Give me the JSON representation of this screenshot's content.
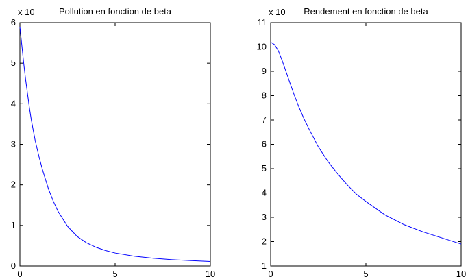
{
  "chart_data": [
    {
      "type": "line",
      "title": "Pollution en fonction de beta",
      "multiplier_label": "x 10",
      "xlabel": "",
      "ylabel": "",
      "xlim": [
        0,
        10
      ],
      "ylim": [
        0,
        6
      ],
      "xticks": [
        "0",
        "5",
        "10"
      ],
      "yticks": [
        "0",
        "1",
        "2",
        "3",
        "4",
        "5",
        "6"
      ],
      "grid": false,
      "line_color": "#0000ff",
      "series": [
        {
          "x": [
            0,
            0.1,
            0.2,
            0.3,
            0.4,
            0.5,
            0.6,
            0.8,
            1,
            1.2,
            1.5,
            1.75,
            2,
            2.5,
            3,
            3.5,
            4,
            4.5,
            5,
            6,
            7,
            8,
            9,
            10
          ],
          "values": [
            5.9,
            5.45,
            5.0,
            4.6,
            4.25,
            3.9,
            3.6,
            3.1,
            2.7,
            2.35,
            1.9,
            1.6,
            1.35,
            0.98,
            0.73,
            0.57,
            0.46,
            0.38,
            0.32,
            0.24,
            0.19,
            0.155,
            0.13,
            0.11
          ]
        }
      ]
    },
    {
      "type": "line",
      "title": "Rendement en fonction de beta",
      "multiplier_label": "x 10",
      "xlabel": "",
      "ylabel": "",
      "xlim": [
        0,
        10
      ],
      "ylim": [
        1,
        11
      ],
      "xticks": [
        "0",
        "5",
        "10"
      ],
      "yticks": [
        "1",
        "2",
        "3",
        "4",
        "5",
        "6",
        "7",
        "8",
        "9",
        "10",
        "11"
      ],
      "grid": false,
      "line_color": "#0000ff",
      "series": [
        {
          "x": [
            0,
            0.2,
            0.4,
            0.6,
            0.8,
            1,
            1.25,
            1.5,
            1.75,
            2,
            2.5,
            3,
            3.5,
            4,
            4.5,
            5,
            6,
            7,
            8,
            9,
            10
          ],
          "values": [
            10.2,
            10.1,
            9.85,
            9.45,
            9.0,
            8.55,
            8.0,
            7.5,
            7.05,
            6.65,
            5.9,
            5.3,
            4.8,
            4.35,
            3.95,
            3.65,
            3.1,
            2.7,
            2.4,
            2.15,
            1.9
          ]
        }
      ]
    }
  ]
}
